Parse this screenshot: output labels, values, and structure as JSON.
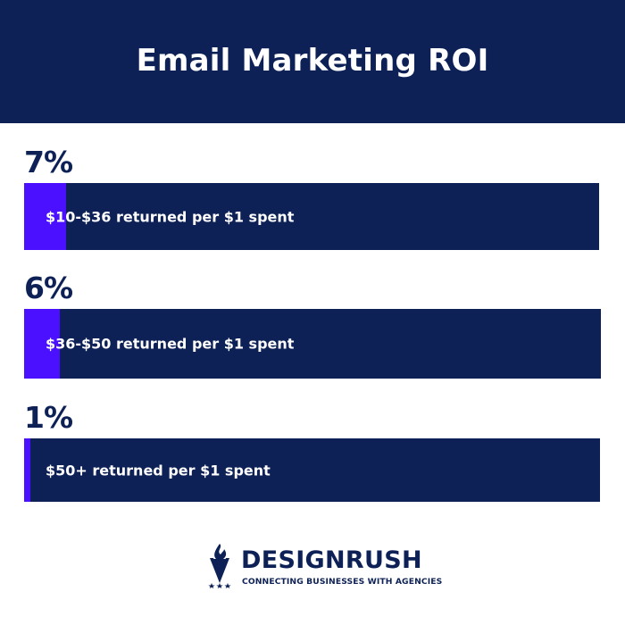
{
  "header": {
    "title": "Email Marketing ROI"
  },
  "chart_data": {
    "type": "bar",
    "title": "Email Marketing ROI",
    "categories": [
      "$10-$36 returned per $1 spent",
      "$36-$50 returned per $1 spent",
      "$50+ returned per $1 spent"
    ],
    "values": [
      7,
      6,
      1
    ],
    "value_labels": [
      "7%",
      "6%",
      "1%"
    ],
    "unit": "%",
    "orientation": "horizontal",
    "ylim": [
      0,
      100
    ],
    "colors": {
      "fill": "#4a10ff",
      "track": "#0d2156"
    }
  },
  "footer": {
    "logo_icon": "designrush-logo-icon",
    "brand": "DESIGNRUSH",
    "tagline": "CONNECTING BUSINESSES WITH AGENCIES"
  },
  "colors": {
    "navy": "#0d2156",
    "accent": "#4a10ff",
    "background": "#ffffff"
  }
}
